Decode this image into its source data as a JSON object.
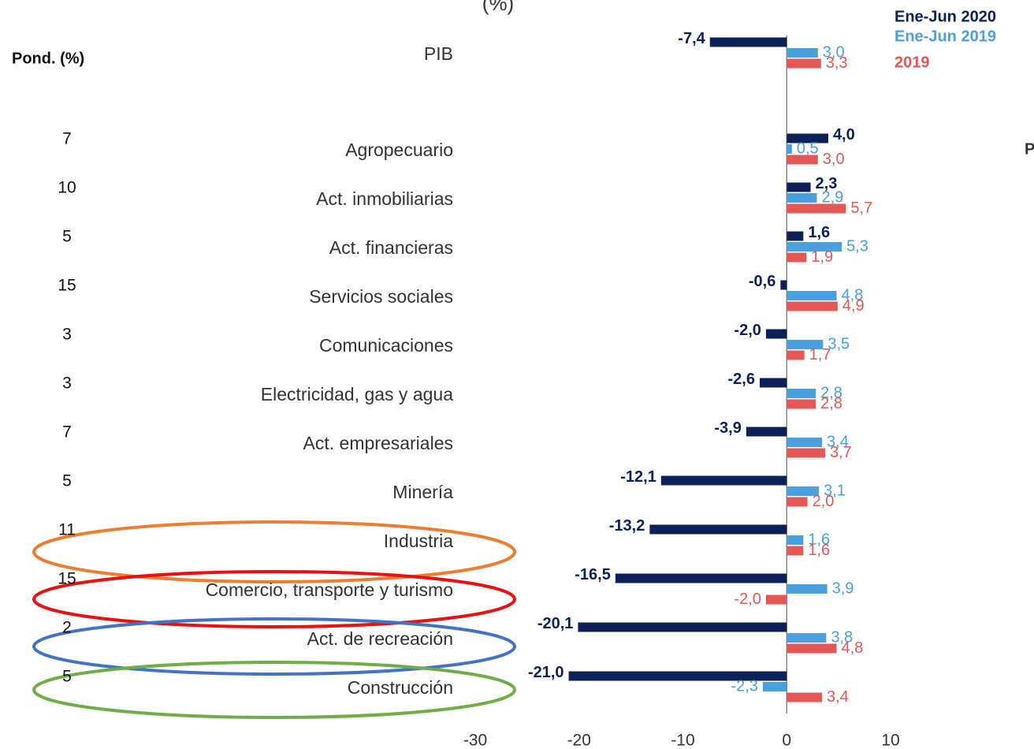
{
  "chart_data": {
    "type": "bar",
    "orientation": "horizontal",
    "title": "(%)",
    "annotation": "P",
    "weights_header": "Pond. (%)",
    "weights": [
      null,
      7,
      10,
      5,
      15,
      3,
      3,
      7,
      5,
      11,
      15,
      2,
      5
    ],
    "categories": [
      "PIB",
      "Agropecuario",
      "Act. inmobiliarias",
      "Act. financieras",
      "Servicios sociales",
      "Comunicaciones",
      "Electricidad, gas y agua",
      "Act. empresariales",
      "Minería",
      "Industria",
      "Comercio, transporte y turismo",
      "Act. de recreación",
      "Construcción"
    ],
    "series": [
      {
        "name": "Ene-Jun 2020",
        "color": "#0d2158",
        "values": [
          -7.4,
          4.0,
          2.3,
          1.6,
          -0.6,
          -2.0,
          -2.6,
          -3.9,
          -12.1,
          -13.2,
          -16.5,
          -20.1,
          -21.0
        ],
        "value_labels": [
          "-7,4",
          "4,0",
          "2,3",
          "1,6",
          "-0,6",
          "-2,0",
          "-2,6",
          "-3,9",
          "-12,1",
          "-13,2",
          "-16,5",
          "-20,1",
          "-21,0"
        ]
      },
      {
        "name": "Ene-Jun 2019",
        "color": "#4a9fdf",
        "values": [
          3.0,
          0.5,
          2.9,
          5.3,
          4.8,
          3.5,
          2.8,
          3.4,
          3.1,
          1.6,
          3.9,
          3.8,
          -2.3
        ],
        "value_labels": [
          "3,0",
          "0,5",
          "2,9",
          "5,3",
          "4,8",
          "3,5",
          "2,8",
          "3,4",
          "3,1",
          "1,6",
          "3,9",
          "3,8",
          "-2,3"
        ]
      },
      {
        "name": "2019",
        "color": "#e45757",
        "values": [
          3.3,
          3.0,
          5.7,
          1.9,
          4.9,
          1.7,
          2.8,
          3.7,
          2.0,
          1.6,
          -2.0,
          4.8,
          3.4
        ],
        "value_labels": [
          "3,3",
          "3,0",
          "5,7",
          "1,9",
          "4,9",
          "1,7",
          "2,8",
          "3,7",
          "2,0",
          "1,6",
          "-2,0",
          "4,8",
          "3,4"
        ]
      }
    ],
    "xlim": [
      -30,
      10
    ],
    "xticks": [
      -30,
      -20,
      -10,
      0,
      10
    ]
  }
}
